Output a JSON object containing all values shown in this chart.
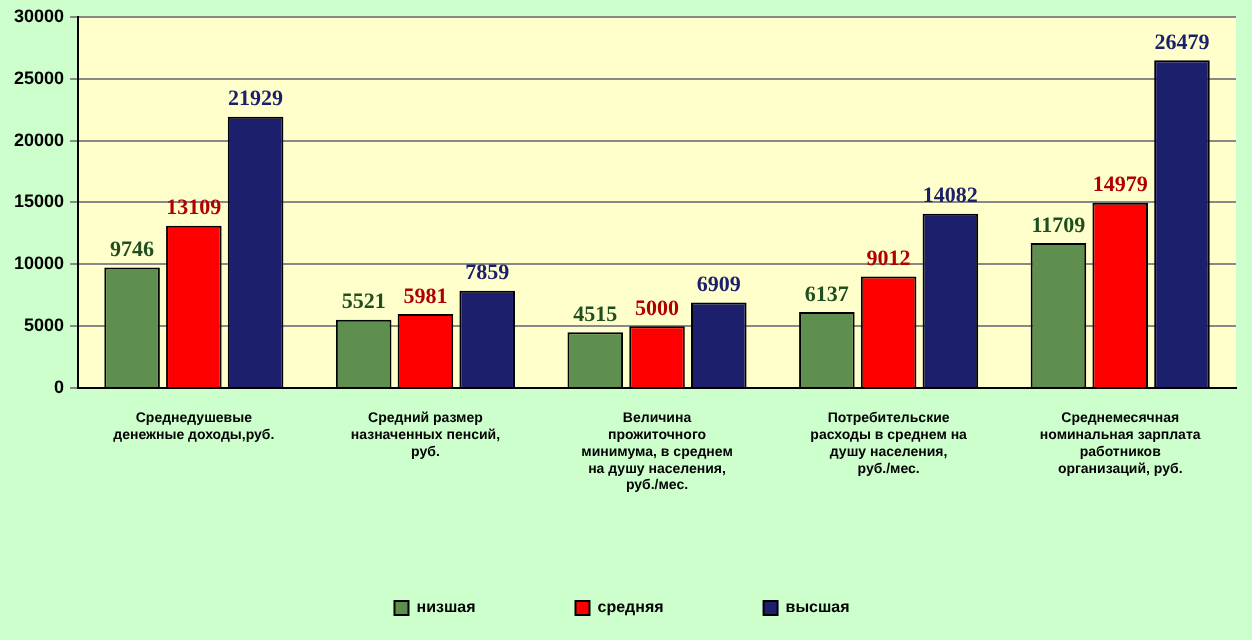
{
  "chart_data": {
    "type": "bar",
    "categories": [
      "Среднедушевые денежные доходы,руб.",
      "Средний размер назначенных пенсий, руб.",
      "Величина прожиточного минимума, в среднем на душу населения, руб./мес.",
      "Потребительские расходы в среднем на душу населения, руб./мес.",
      "Среднемесячная номинальная зарплата работников организаций, руб."
    ],
    "series": [
      {
        "name": "низшая",
        "color": "#5f8f4f",
        "values": [
          9746,
          5521,
          4515,
          6137,
          11709
        ]
      },
      {
        "name": "средняя",
        "color": "#ff0000",
        "values": [
          13109,
          5981,
          5000,
          9012,
          14979
        ]
      },
      {
        "name": "высшая",
        "color": "#1c1f6b",
        "values": [
          21929,
          7859,
          6909,
          14082,
          26479
        ]
      }
    ],
    "ylim": [
      0,
      30000
    ],
    "yticks": [
      0,
      5000,
      10000,
      15000,
      20000,
      25000,
      30000
    ],
    "grid": "y",
    "legend": "bottom",
    "data_labels": true
  }
}
